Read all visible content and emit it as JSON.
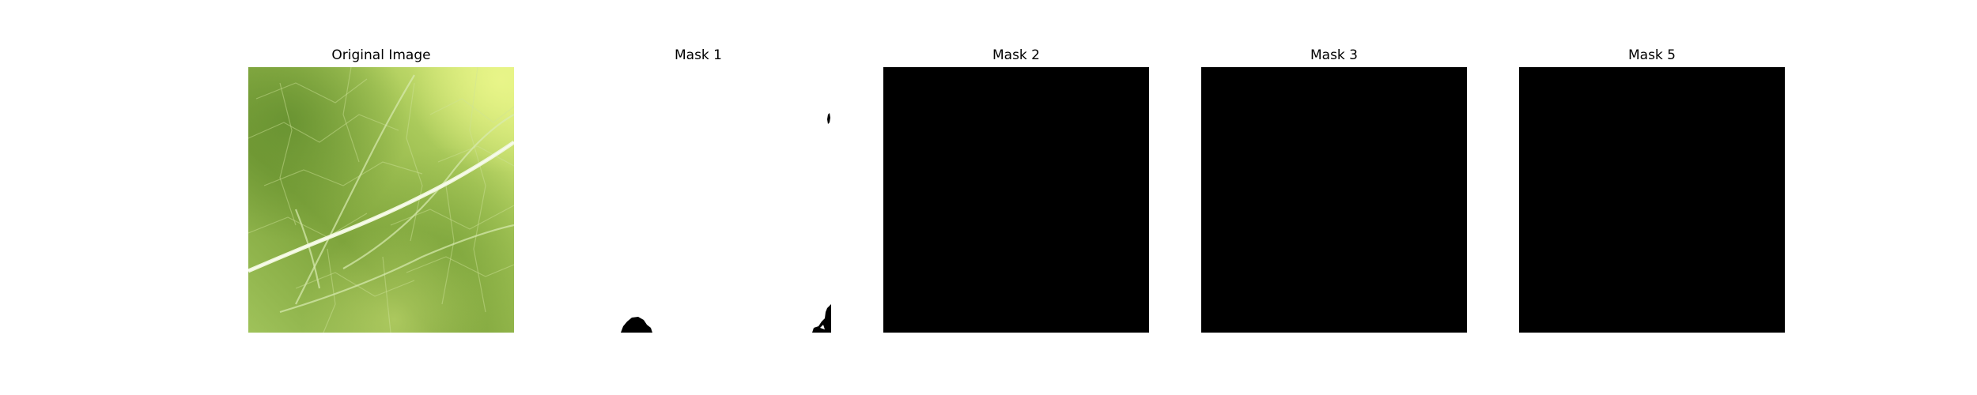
{
  "panels": [
    {
      "title": "Original Image",
      "kind": "photo",
      "subject": "leaf-texture"
    },
    {
      "title": "Mask 1",
      "kind": "mask",
      "fill": "#ffffff"
    },
    {
      "title": "Mask 2",
      "kind": "mask",
      "fill": "#000000"
    },
    {
      "title": "Mask 3",
      "kind": "mask",
      "fill": "#000000"
    },
    {
      "title": "Mask 5",
      "kind": "mask",
      "fill": "#000000"
    }
  ],
  "colors": {
    "background": "#ffffff",
    "leaf_dark": "#5f8a2c",
    "leaf_mid": "#8fb24a",
    "leaf_light": "#d7ec79",
    "vein": "#e4f1c6",
    "mask_on": "#000000",
    "mask_off": "#ffffff"
  }
}
